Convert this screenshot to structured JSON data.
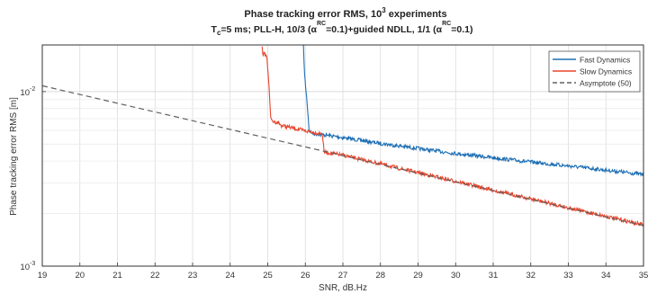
{
  "chart_data": {
    "type": "line",
    "title_line1": "Phase tracking error RMS, 10",
    "title_line1_sup": "3",
    "title_line1_tail": " experiments",
    "title_line2_parts": [
      {
        "t": "T",
        "s": "n"
      },
      {
        "t": "c",
        "s": "sub"
      },
      {
        "t": "=5 ms; PLL-H, 10/3 (",
        "s": "n"
      },
      {
        "t": "α",
        "s": "n"
      },
      {
        "t": "RC",
        "s": "sup"
      },
      {
        "t": "=0.1)+guided NDLL, 1/1 (",
        "s": "n"
      },
      {
        "t": "α",
        "s": "n"
      },
      {
        "t": "RC",
        "s": "sup"
      },
      {
        "t": "=0.1)",
        "s": "n"
      }
    ],
    "xlabel": "SNR, dB.Hz",
    "ylabel": "Phase tracking error RMS [m]",
    "xlim": [
      19,
      35
    ],
    "ylim": [
      0.001,
      0.0185
    ],
    "yscale": "log",
    "x_ticks": [
      19,
      20,
      21,
      22,
      23,
      24,
      25,
      26,
      27,
      28,
      29,
      30,
      31,
      32,
      33,
      34,
      35
    ],
    "y_ticks": [
      {
        "value": 0.01,
        "base": "10",
        "exp": "-2"
      },
      {
        "value": 0.001,
        "base": "10",
        "exp": "-3"
      }
    ],
    "grid": true,
    "legend_position": "top-right",
    "series": [
      {
        "name": "Fast Dynamics",
        "color": "#1f6fb4",
        "style": "solid",
        "noisy": true,
        "points": [
          [
            25.95,
            0.0185
          ],
          [
            25.98,
            0.0125
          ],
          [
            26.02,
            0.01
          ],
          [
            26.05,
            0.0085
          ],
          [
            26.08,
            0.007
          ],
          [
            26.1,
            0.006
          ],
          [
            26.2,
            0.00575
          ],
          [
            26.5,
            0.00565
          ],
          [
            27,
            0.00545
          ],
          [
            28,
            0.00505
          ],
          [
            29,
            0.00472
          ],
          [
            30,
            0.00442
          ],
          [
            31,
            0.00418
          ],
          [
            32,
            0.00395
          ],
          [
            33,
            0.00375
          ],
          [
            34,
            0.00355
          ],
          [
            35,
            0.00335
          ]
        ]
      },
      {
        "name": "Slow Dynamics",
        "color": "#e8452c",
        "style": "solid",
        "noisy": true,
        "points": [
          [
            24.85,
            0.0185
          ],
          [
            24.87,
            0.0165
          ],
          [
            24.95,
            0.0162
          ],
          [
            24.98,
            0.0155
          ],
          [
            25.02,
            0.012
          ],
          [
            25.05,
            0.009
          ],
          [
            25.08,
            0.0072
          ],
          [
            25.1,
            0.0068
          ],
          [
            25.3,
            0.0066
          ],
          [
            25.35,
            0.0064
          ],
          [
            25.5,
            0.0063
          ],
          [
            26,
            0.00595
          ],
          [
            26.3,
            0.0058
          ],
          [
            26.45,
            0.00575
          ],
          [
            26.5,
            0.0045
          ],
          [
            27,
            0.00432
          ],
          [
            28,
            0.00385
          ],
          [
            29,
            0.00343
          ],
          [
            30,
            0.00306
          ],
          [
            31,
            0.00272
          ],
          [
            32,
            0.00243
          ],
          [
            33,
            0.00216
          ],
          [
            34,
            0.00193
          ],
          [
            35,
            0.00172
          ]
        ]
      },
      {
        "name": "Asymptote (50)",
        "color": "#606060",
        "style": "dashed",
        "noisy": false,
        "points": [
          [
            19,
            0.0108
          ],
          [
            26.5,
            0.00455
          ],
          [
            28,
            0.00383
          ],
          [
            29,
            0.00341
          ],
          [
            30,
            0.00304
          ],
          [
            31,
            0.00271
          ],
          [
            32,
            0.00241
          ],
          [
            33,
            0.00215
          ],
          [
            34,
            0.00191
          ],
          [
            35,
            0.00171
          ]
        ]
      }
    ]
  }
}
